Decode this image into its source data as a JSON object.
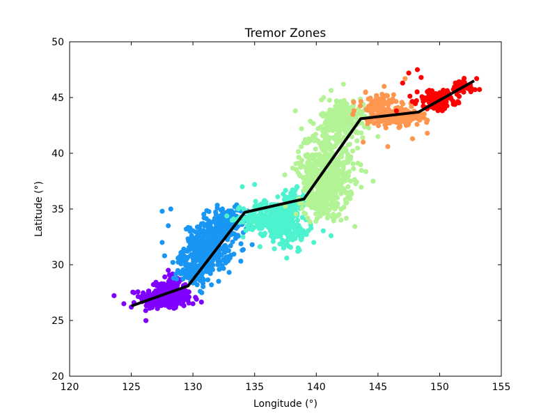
{
  "chart_data": {
    "type": "scatter",
    "title": "Tremor Zones",
    "xlabel": "Longitude (°)",
    "ylabel": "Latitude (°)",
    "xlim": [
      120,
      155
    ],
    "ylim": [
      20,
      50
    ],
    "xticks": [
      "120",
      "125",
      "130",
      "135",
      "140",
      "145",
      "150",
      "155"
    ],
    "yticks": [
      "20",
      "25",
      "30",
      "35",
      "40",
      "45",
      "50"
    ],
    "grid": false,
    "legend": "none",
    "zones": [
      {
        "color": "#8000ff",
        "clusters": [
          {
            "cx": 127.8,
            "cy": 27.0,
            "sx": 1.3,
            "sy": 0.6,
            "n": 260
          },
          {
            "cx": 128.2,
            "cy": 28.2,
            "sx": 0.7,
            "sy": 0.6,
            "n": 60
          }
        ],
        "extra_points": [
          [
            124.4,
            26.5
          ],
          [
            125.0,
            26.2
          ],
          [
            126.5,
            26.1
          ],
          [
            130.0,
            26.5
          ],
          [
            128.0,
            29.5
          ]
        ]
      },
      {
        "color": "#1996f3",
        "clusters": [
          {
            "cx": 131.2,
            "cy": 31.5,
            "sx": 1.2,
            "sy": 1.3,
            "n": 320
          },
          {
            "cx": 132.8,
            "cy": 33.8,
            "sx": 1.0,
            "sy": 0.8,
            "n": 160
          },
          {
            "cx": 130.0,
            "cy": 29.5,
            "sx": 0.8,
            "sy": 0.9,
            "n": 110
          }
        ],
        "extra_points": [
          [
            127.5,
            34.8
          ],
          [
            128.2,
            35.0
          ],
          [
            128.0,
            33.5
          ],
          [
            127.5,
            32.0
          ],
          [
            131.5,
            28.2
          ],
          [
            134.8,
            31.8
          ],
          [
            127.7,
            30.8
          ]
        ]
      },
      {
        "color": "#4df3ce",
        "clusters": [
          {
            "cx": 136.5,
            "cy": 34.2,
            "sx": 1.5,
            "sy": 0.9,
            "n": 320
          },
          {
            "cx": 138.0,
            "cy": 32.8,
            "sx": 1.0,
            "sy": 0.7,
            "n": 90
          },
          {
            "cx": 138.3,
            "cy": 35.8,
            "sx": 0.8,
            "sy": 0.6,
            "n": 70
          }
        ],
        "extra_points": [
          [
            134.0,
            37.0
          ],
          [
            135.0,
            37.2
          ],
          [
            139.8,
            32.0
          ],
          [
            137.6,
            30.6
          ],
          [
            141.2,
            32.6
          ],
          [
            138.5,
            31.2
          ],
          [
            136.0,
            33.5
          ]
        ]
      },
      {
        "color": "#b2f396",
        "clusters": [
          {
            "cx": 140.8,
            "cy": 38.5,
            "sx": 1.4,
            "sy": 2.2,
            "n": 460
          },
          {
            "cx": 142.2,
            "cy": 43.0,
            "sx": 1.1,
            "sy": 1.2,
            "n": 220
          },
          {
            "cx": 140.5,
            "cy": 35.8,
            "sx": 1.0,
            "sy": 0.9,
            "n": 120
          }
        ],
        "extra_points": [
          [
            138.3,
            43.8
          ],
          [
            138.8,
            42.2
          ],
          [
            140.6,
            45.0
          ],
          [
            142.2,
            46.2
          ],
          [
            145.0,
            41.5
          ],
          [
            144.6,
            37.5
          ],
          [
            140.9,
            34.2
          ],
          [
            142.0,
            34.0
          ]
        ]
      },
      {
        "color": "#ff964f",
        "clusters": [
          {
            "cx": 146.3,
            "cy": 43.3,
            "sx": 1.3,
            "sy": 0.5,
            "n": 260
          },
          {
            "cx": 145.0,
            "cy": 44.5,
            "sx": 0.8,
            "sy": 0.5,
            "n": 60
          }
        ],
        "extra_points": [
          [
            147.2,
            46.7
          ],
          [
            145.5,
            46.0
          ],
          [
            144.0,
            45.5
          ],
          [
            143.8,
            41.0
          ],
          [
            145.8,
            40.6
          ],
          [
            149.0,
            41.8
          ],
          [
            147.8,
            41.3
          ]
        ]
      },
      {
        "color": "#ff0000",
        "clusters": [
          {
            "cx": 149.8,
            "cy": 44.8,
            "sx": 1.0,
            "sy": 0.5,
            "n": 130
          },
          {
            "cx": 151.8,
            "cy": 45.9,
            "sx": 0.8,
            "sy": 0.4,
            "n": 50
          }
        ],
        "extra_points": [
          [
            147.5,
            47.2
          ],
          [
            148.2,
            47.5
          ],
          [
            148.5,
            46.8
          ],
          [
            147.0,
            46.3
          ],
          [
            153.0,
            46.7
          ],
          [
            146.5,
            43.8
          ]
        ]
      }
    ],
    "trace_line": {
      "color": "#000000",
      "points": [
        [
          125.0,
          26.3
        ],
        [
          129.6,
          28.1
        ],
        [
          134.2,
          34.7
        ],
        [
          139.0,
          35.9
        ],
        [
          143.6,
          43.1
        ],
        [
          148.3,
          43.7
        ],
        [
          152.8,
          46.5
        ]
      ]
    }
  }
}
